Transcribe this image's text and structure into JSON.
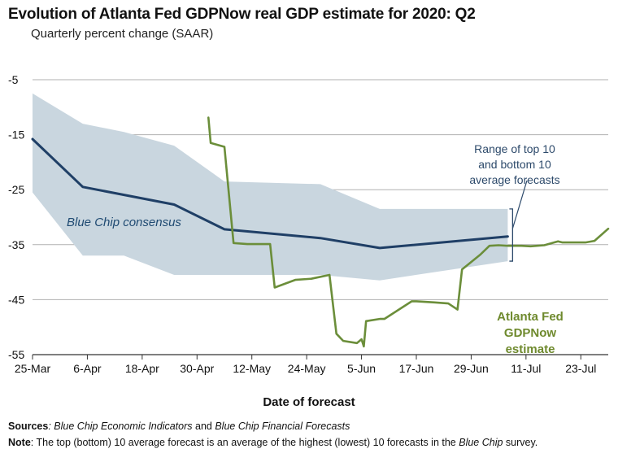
{
  "title": "Evolution of Atlanta Fed GDPNow real GDP estimate for 2020: Q2",
  "subtitle": "Quarterly percent change (SAAR)",
  "footer": {
    "sources_label": "Sources",
    "sources_text_1": ": ",
    "sources_italic_1": "Blue Chip Economic Indicators",
    "sources_text_2": " and ",
    "sources_italic_2": "Blue Chip Financial Forecasts",
    "note_label": "Note",
    "note_text_1": ": The top (bottom) 10 average forecast is an average of the highest (lowest) 10 forecasts in the ",
    "note_italic": "Blue Chip",
    "note_text_2": " survey."
  },
  "annotations": {
    "range_line1": "Range of top 10",
    "range_line2": "and bottom 10",
    "range_line3": "average forecasts",
    "consensus": "Blue Chip consensus",
    "gdpnow_line1": "Atlanta Fed",
    "gdpnow_line2": "GDPNow estimate"
  },
  "colors": {
    "band": "#c9d6df",
    "consensus": "#1f3f66",
    "gdpnow": "#6b8e3a",
    "grid": "#b0b0b0",
    "axis": "#333333"
  },
  "chart_data": {
    "type": "line",
    "title": "Evolution of Atlanta Fed GDPNow real GDP estimate for 2020: Q2",
    "subtitle": "Quarterly percent change (SAAR)",
    "xlabel": "Date of forecast",
    "ylabel": "",
    "x_unit": "days since 25-Mar",
    "xlim": [
      0,
      126
    ],
    "ylim": [
      -55,
      -5
    ],
    "y_ticks": [
      -5,
      -15,
      -25,
      -35,
      -45,
      -55
    ],
    "y_tick_labels": [
      "-5",
      "-15",
      "-25",
      "-35",
      "-45",
      "-55"
    ],
    "x_ticks": [
      0,
      12,
      24,
      36,
      48,
      60,
      72,
      84,
      96,
      108,
      120
    ],
    "x_tick_labels": [
      "25-Mar",
      "6-Apr",
      "18-Apr",
      "30-Apr",
      "12-May",
      "24-May",
      "5-Jun",
      "17-Jun",
      "29-Jun",
      "11-Jul",
      "23-Jul"
    ],
    "grid": true,
    "series": [
      {
        "name": "Range of top 10 and bottom 10 average forecasts",
        "kind": "band",
        "x": [
          0,
          11,
          20,
          31,
          42,
          63,
          76,
          104
        ],
        "upper": [
          -7.5,
          -13,
          -14.5,
          -17,
          -23.5,
          -24,
          -28.5,
          -28.5
        ],
        "lower": [
          -25.5,
          -37,
          -37,
          -40.5,
          -40.5,
          -40.5,
          -41.5,
          -38
        ]
      },
      {
        "name": "Blue Chip consensus",
        "kind": "line",
        "x": [
          0,
          11,
          31,
          42,
          63,
          76,
          104
        ],
        "values": [
          -15.8,
          -24.5,
          -27.7,
          -32.2,
          -33.8,
          -35.6,
          -33.5
        ]
      },
      {
        "name": "Atlanta Fed GDPNow estimate",
        "kind": "line",
        "x": [
          38.5,
          39,
          42,
          44,
          47,
          52,
          53,
          57.5,
          61,
          65,
          66.5,
          68,
          71,
          72,
          72.5,
          73,
          76,
          77,
          83,
          84,
          88,
          91,
          93,
          94,
          98,
          100,
          102,
          104,
          107,
          109,
          112,
          115,
          116,
          121,
          123,
          126
        ],
        "values": [
          -11.9,
          -16.5,
          -17.2,
          -34.7,
          -34.9,
          -34.9,
          -42.8,
          -41.4,
          -41.2,
          -40.5,
          -51.2,
          -52.5,
          -52.9,
          -52.2,
          -53.5,
          -48.9,
          -48.5,
          -48.5,
          -45.3,
          -45.3,
          -45.5,
          -45.7,
          -46.8,
          -39.5,
          -36.8,
          -35.2,
          -35.1,
          -35.2,
          -35.2,
          -35.3,
          -35.1,
          -34.4,
          -34.6,
          -34.6,
          -34.3,
          -32.1
        ]
      }
    ]
  }
}
